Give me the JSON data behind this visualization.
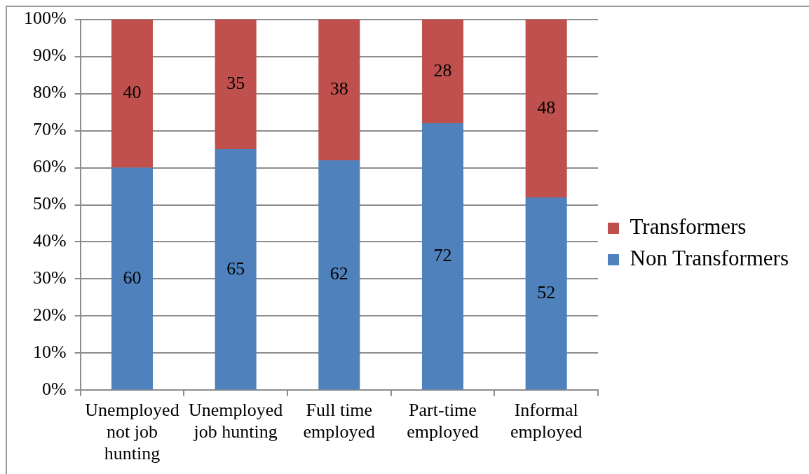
{
  "chart_data": {
    "type": "bar",
    "stacked": true,
    "categories": [
      "Unemployed not job hunting",
      "Unemployed job hunting",
      "Full time employed",
      "Part-time employed",
      "Informal employed"
    ],
    "series": [
      {
        "name": "Non Transformers",
        "color": "#4f81bd",
        "values": [
          60,
          65,
          62,
          72,
          52
        ]
      },
      {
        "name": "Transformers",
        "color": "#c0504d",
        "values": [
          40,
          35,
          38,
          28,
          48
        ]
      }
    ],
    "ylim": [
      0,
      100
    ],
    "yticks": [
      {
        "value": 0,
        "label": "0%"
      },
      {
        "value": 10,
        "label": "10%"
      },
      {
        "value": 20,
        "label": "20%"
      },
      {
        "value": 30,
        "label": "30%"
      },
      {
        "value": 40,
        "label": "40%"
      },
      {
        "value": 50,
        "label": "50%"
      },
      {
        "value": 60,
        "label": "60%"
      },
      {
        "value": 70,
        "label": "70%"
      },
      {
        "value": 80,
        "label": "80%"
      },
      {
        "value": 90,
        "label": "90%"
      },
      {
        "value": 100,
        "label": "100%"
      }
    ],
    "grid": "y",
    "legend": "right",
    "data_labels": true
  }
}
